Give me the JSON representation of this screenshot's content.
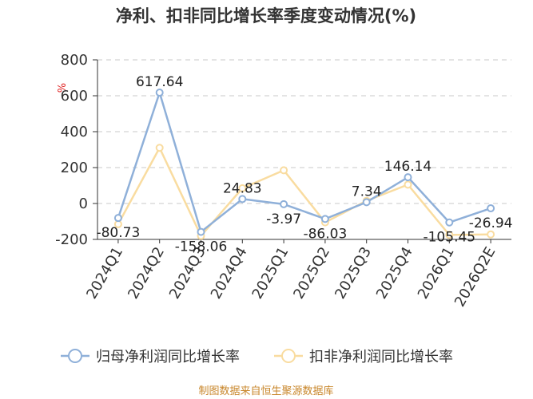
{
  "chart_data": {
    "type": "line",
    "title": "净利、扣非同比增长率季度变动情况(%)",
    "ylabel": "%",
    "xlabel": "",
    "categories": [
      "2024Q1",
      "2024Q2",
      "2024Q3",
      "2024Q4",
      "2025Q1",
      "2025Q2",
      "2025Q3",
      "2025Q4",
      "2026Q1",
      "2026Q2E"
    ],
    "ylim": [
      -200,
      800
    ],
    "yticks": [
      -200,
      0,
      200,
      400,
      600,
      800
    ],
    "grid": true,
    "legend_position": "bottom",
    "series": [
      {
        "name": "归母净利润同比增长率",
        "color": "#8fb0d9",
        "values": [
          -80.73,
          617.64,
          -158.06,
          24.83,
          -3.97,
          -86.03,
          7.34,
          146.14,
          -105.45,
          -26.94
        ],
        "labels": [
          "-80.73",
          "617.64",
          "-158.06",
          "24.83",
          "-3.97",
          "-86.03",
          "7.34",
          "146.14",
          "-105.45",
          "-26.94"
        ]
      },
      {
        "name": "扣非净利润同比增长率",
        "color": "#f9dca0",
        "values": [
          -115,
          310,
          -180,
          85,
          185,
          -105,
          15,
          105,
          -175,
          -172
        ]
      }
    ]
  },
  "source": "制图数据来自恒生聚源数据库"
}
